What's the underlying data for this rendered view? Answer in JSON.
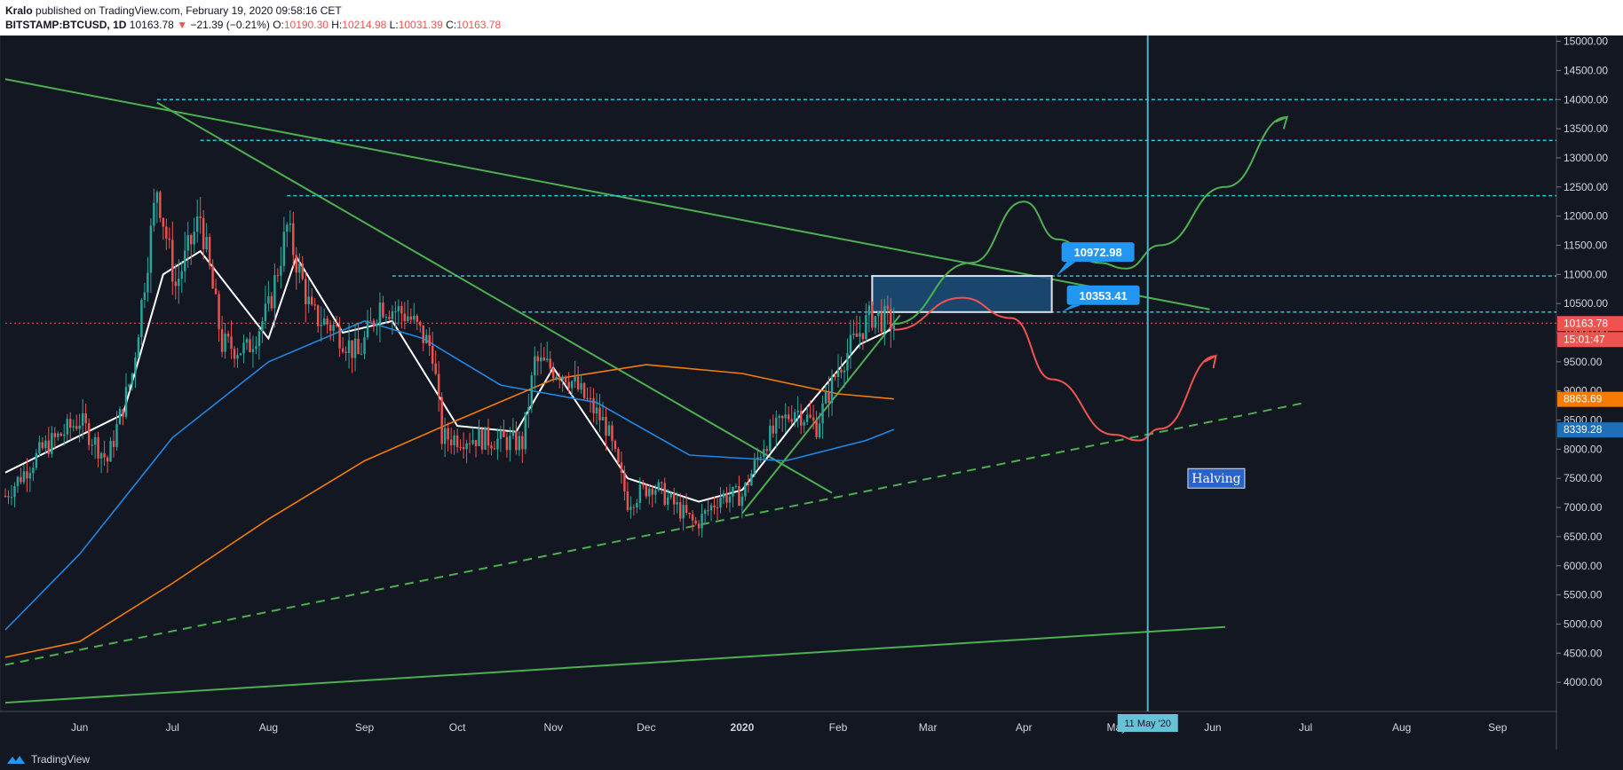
{
  "header": {
    "author": "Kralo",
    "published": "published on TradingView.com, February 19, 2020 09:58:16 CET",
    "symbol": "BITSTAMP:BTCUSD, 1D",
    "last": "10163.78",
    "change_arrow": "▼",
    "change": "−21.39 (−0.21%)",
    "o_label": "O:",
    "o": "10190.30",
    "h_label": "H:",
    "h": "10214.98",
    "l_label": "L:",
    "l": "10031.39",
    "c_label": "C:",
    "c": "10163.78"
  },
  "footer": {
    "brand": "TradingView"
  },
  "chart_data": {
    "type": "candlestick",
    "title": "BITSTAMP:BTCUSD, 1D",
    "ylim": [
      3500,
      15100
    ],
    "y_ticks": [
      "4000.00",
      "4500.00",
      "5000.00",
      "5500.00",
      "6000.00",
      "6500.00",
      "7000.00",
      "7500.00",
      "8000.00",
      "8500.00",
      "9000.00",
      "9500.00",
      "10000.00",
      "10500.00",
      "11000.00",
      "11500.00",
      "12000.00",
      "12500.00",
      "13000.00",
      "13500.00",
      "14000.00",
      "14500.00",
      "15000.00"
    ],
    "x_ticks": [
      "Jun",
      "Jul",
      "Aug",
      "Sep",
      "Oct",
      "Nov",
      "Dec",
      "2020",
      "Feb",
      "Mar",
      "Apr",
      "May",
      "Jun",
      "Jul",
      "Aug",
      "Sep"
    ],
    "x_range": [
      "2019-05-08",
      "2020-09-20"
    ],
    "price_series": [
      [
        "2019-05-08",
        7200
      ],
      [
        "2019-05-20",
        8000
      ],
      [
        "2019-06-01",
        8500
      ],
      [
        "2019-06-10",
        7800
      ],
      [
        "2019-06-18",
        9300
      ],
      [
        "2019-06-26",
        12500
      ],
      [
        "2019-07-02",
        10800
      ],
      [
        "2019-07-10",
        12000
      ],
      [
        "2019-07-17",
        9800
      ],
      [
        "2019-07-25",
        9700
      ],
      [
        "2019-08-01",
        10400
      ],
      [
        "2019-08-07",
        11800
      ],
      [
        "2019-08-15",
        10300
      ],
      [
        "2019-08-22",
        10100
      ],
      [
        "2019-08-30",
        9600
      ],
      [
        "2019-09-06",
        10500
      ],
      [
        "2019-09-15",
        10300
      ],
      [
        "2019-09-23",
        9700
      ],
      [
        "2019-09-26",
        8200
      ],
      [
        "2019-10-07",
        8200
      ],
      [
        "2019-10-22",
        8100
      ],
      [
        "2019-10-26",
        9500
      ],
      [
        "2019-11-05",
        9300
      ],
      [
        "2019-11-18",
        8400
      ],
      [
        "2019-11-25",
        7100
      ],
      [
        "2019-12-03",
        7400
      ],
      [
        "2019-12-17",
        6700
      ],
      [
        "2019-12-25",
        7200
      ],
      [
        "2020-01-01",
        7200
      ],
      [
        "2020-01-08",
        8100
      ],
      [
        "2020-01-18",
        8700
      ],
      [
        "2020-01-25",
        8400
      ],
      [
        "2020-02-01",
        9400
      ],
      [
        "2020-02-09",
        10100
      ],
      [
        "2020-02-12",
        10300
      ],
      [
        "2020-02-19",
        10163.78
      ]
    ],
    "ma_series": [
      {
        "name": "",
        "color": "#ffffff",
        "points": [
          [
            "2019-05-08",
            7600
          ],
          [
            "2019-06-15",
            8600
          ],
          [
            "2019-06-28",
            11000
          ],
          [
            "2019-07-10",
            11400
          ],
          [
            "2019-08-01",
            9900
          ],
          [
            "2019-08-10",
            11300
          ],
          [
            "2019-08-25",
            10000
          ],
          [
            "2019-09-10",
            10200
          ],
          [
            "2019-10-01",
            8400
          ],
          [
            "2019-10-20",
            8300
          ],
          [
            "2019-11-01",
            9400
          ],
          [
            "2019-11-25",
            7500
          ],
          [
            "2019-12-18",
            7100
          ],
          [
            "2020-01-01",
            7300
          ],
          [
            "2020-01-20",
            8600
          ],
          [
            "2020-02-08",
            9800
          ],
          [
            "2020-02-18",
            10050
          ]
        ]
      },
      {
        "name": "",
        "color": "#1e88e5",
        "points": [
          [
            "2019-05-08",
            4900
          ],
          [
            "2019-06-01",
            6200
          ],
          [
            "2019-07-01",
            8200
          ],
          [
            "2019-08-01",
            9500
          ],
          [
            "2019-09-01",
            10200
          ],
          [
            "2019-09-20",
            9900
          ],
          [
            "2019-10-15",
            9100
          ],
          [
            "2019-11-15",
            8800
          ],
          [
            "2019-12-15",
            7900
          ],
          [
            "2020-01-15",
            7800
          ],
          [
            "2020-02-10",
            8150
          ],
          [
            "2020-02-19",
            8339.28
          ]
        ]
      },
      {
        "name": "",
        "color": "#f57c00",
        "points": [
          [
            "2019-05-08",
            4430
          ],
          [
            "2019-06-01",
            4700
          ],
          [
            "2019-07-01",
            5700
          ],
          [
            "2019-08-01",
            6800
          ],
          [
            "2019-09-01",
            7800
          ],
          [
            "2019-10-01",
            8500
          ],
          [
            "2019-11-01",
            9200
          ],
          [
            "2019-12-01",
            9450
          ],
          [
            "2020-01-01",
            9300
          ],
          [
            "2020-02-01",
            8950
          ],
          [
            "2020-02-19",
            8863.69
          ]
        ]
      }
    ],
    "horizontal_levels": [
      14000,
      13300,
      12350,
      10972.98,
      10353.41
    ],
    "current_price": 10163.78,
    "price_badges": [
      {
        "text": "10163.78",
        "value": 10163.78,
        "color": "#ef5350"
      },
      {
        "text": "15:01:47",
        "value": 9750,
        "color": "#ef5350"
      },
      {
        "text": "8863.69",
        "value": 8863.69,
        "color": "#f57c00"
      },
      {
        "text": "8339.28",
        "value": 8339.28,
        "color": "#1e6fb5"
      }
    ],
    "zone": {
      "from": "2020-02-12",
      "to": "2020-04-10",
      "low": 10353.41,
      "high": 10972.98
    },
    "zone_labels": [
      {
        "text": "10972.98",
        "value": 10972.98
      },
      {
        "text": "10353.41",
        "value": 10353.41
      }
    ],
    "trendlines": [
      {
        "style": "solid",
        "color": "#4caf50",
        "from": [
          "2019-05-08",
          14350
        ],
        "to": [
          "2020-05-31",
          10400
        ]
      },
      {
        "style": "solid",
        "color": "#4caf50",
        "from": [
          "2019-06-26",
          13950
        ],
        "to": [
          "2020-01-30",
          7250
        ]
      },
      {
        "style": "solid",
        "color": "#4caf50",
        "from": [
          "2020-01-01",
          6900
        ],
        "to": [
          "2020-02-21",
          10300
        ]
      },
      {
        "style": "dashed",
        "color": "#4caf50",
        "from": [
          "2019-05-08",
          4300
        ],
        "to": [
          "2020-07-01",
          8800
        ]
      },
      {
        "style": "solid",
        "color": "#4caf50",
        "from": [
          "2019-05-08",
          3650
        ],
        "to": [
          "2020-06-05",
          4950
        ]
      }
    ],
    "projections": [
      {
        "color": "#4caf50",
        "points": [
          [
            "2020-02-19",
            10150
          ],
          [
            "2020-03-15",
            11200
          ],
          [
            "2020-04-01",
            12250
          ],
          [
            "2020-04-12",
            11600
          ],
          [
            "2020-04-25",
            11200
          ],
          [
            "2020-05-04",
            11100
          ],
          [
            "2020-05-15",
            11500
          ],
          [
            "2020-06-05",
            12500
          ],
          [
            "2020-06-25",
            13700
          ]
        ]
      },
      {
        "color": "#ef5350",
        "points": [
          [
            "2020-02-19",
            10050
          ],
          [
            "2020-03-12",
            10600
          ],
          [
            "2020-03-28",
            10250
          ],
          [
            "2020-04-10",
            9200
          ],
          [
            "2020-04-30",
            8250
          ],
          [
            "2020-05-08",
            8150
          ],
          [
            "2020-05-15",
            8350
          ],
          [
            "2020-06-02",
            9600
          ]
        ]
      }
    ],
    "event_line": {
      "date": "2020-05-11",
      "label": "11 May '20"
    },
    "annotation": {
      "text": "Halving",
      "date": "2020-06-01",
      "value": 7500
    }
  }
}
